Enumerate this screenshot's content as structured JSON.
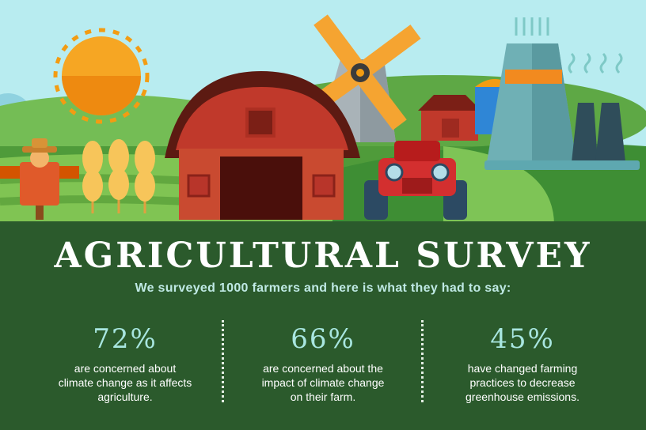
{
  "header": {
    "title": "AGRICULTURAL SURVEY",
    "subtitle": "We surveyed 1000 farmers and here is what they had to say:"
  },
  "stats": [
    {
      "value": "72%",
      "description": "are concerned about climate change as it affects agriculture."
    },
    {
      "value": "66%",
      "description": "are concerned about the impact of climate change on their farm."
    },
    {
      "value": "45%",
      "description": "have changed farming practices to decrease greenhouse emissions."
    }
  ],
  "colors": {
    "sky": "#b8ecf0",
    "panel": "#2b5a2c",
    "sun": "#f39c12",
    "barn": "#c0392b",
    "accent": "#a8e6e0"
  },
  "illustration": {
    "icons": [
      "sun-icon",
      "windmill-icon",
      "barn-icon",
      "tractor-icon",
      "scarecrow-icon",
      "wheat-icon",
      "factory-icon",
      "silo-icon"
    ]
  }
}
